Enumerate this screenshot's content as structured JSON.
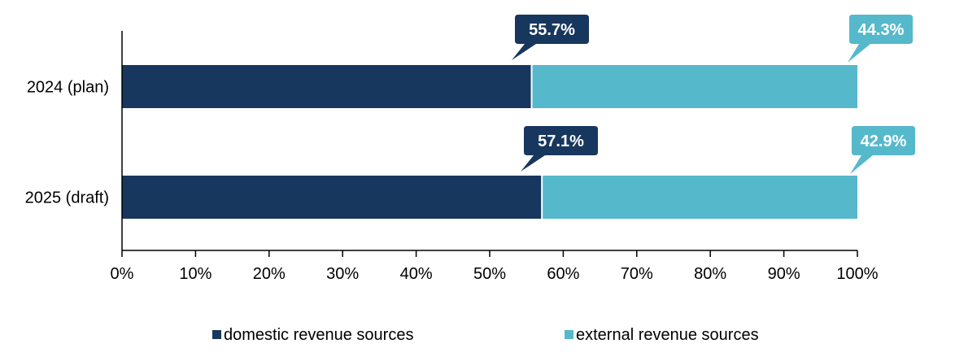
{
  "chart_data": {
    "type": "bar",
    "orientation": "horizontal",
    "stacked": true,
    "categories": [
      "2024 (plan)",
      "2025 (draft)"
    ],
    "series": [
      {
        "name": "domestic revenue sources",
        "values": [
          55.7,
          57.1
        ],
        "labels": [
          "55.7%",
          "57.1%"
        ],
        "color": "#17375e"
      },
      {
        "name": "external revenue sources",
        "values": [
          44.3,
          42.9
        ],
        "labels": [
          "44.3%",
          "42.9%"
        ],
        "color": "#56b8cb"
      }
    ],
    "xlim": [
      0,
      100
    ],
    "xticks": [
      "0%",
      "10%",
      "20%",
      "30%",
      "40%",
      "50%",
      "60%",
      "70%",
      "80%",
      "90%",
      "100%"
    ],
    "grid": false,
    "legend": "bottom",
    "title": "",
    "xlabel": "",
    "ylabel": ""
  }
}
